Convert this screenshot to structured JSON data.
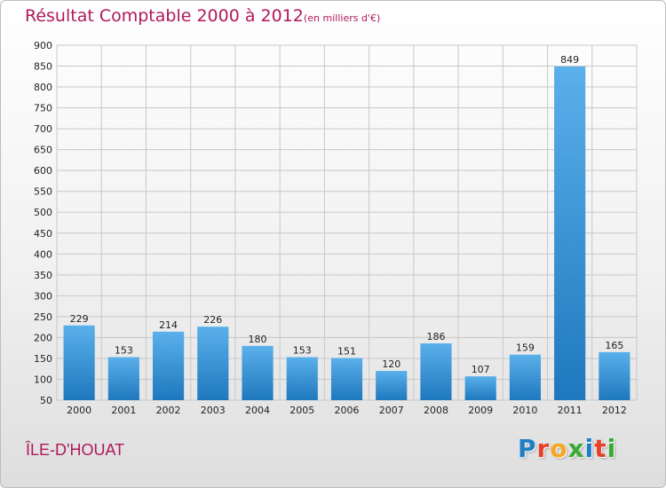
{
  "header": {
    "title": "Résultat Comptable 2000 à 2012",
    "subtitle": "(en milliers d'€)"
  },
  "commune": "ÎLE-D'HOUAT",
  "logo": {
    "letters": [
      "P",
      "r",
      "o",
      "x",
      "i",
      "t",
      "i"
    ],
    "colors": [
      "#1e7fc4",
      "#e6412a",
      "#f5a623",
      "#3aaa35",
      "#1e7fc4",
      "#e6412a",
      "#3aaa35"
    ]
  },
  "colors": {
    "bar_top": "#5ab0ea",
    "bar_bottom": "#1f78be",
    "grid": "#c8c8c8",
    "title": "#b0195a"
  },
  "chart_data": {
    "type": "bar",
    "title": "Résultat Comptable 2000 à 2012",
    "subtitle": "(en milliers d'€)",
    "categories": [
      "2000",
      "2001",
      "2002",
      "2003",
      "2004",
      "2005",
      "2006",
      "2007",
      "2008",
      "2009",
      "2010",
      "2011",
      "2012"
    ],
    "values": [
      229,
      153,
      214,
      226,
      180,
      153,
      151,
      120,
      186,
      107,
      159,
      849,
      165
    ],
    "ylim": [
      50,
      900
    ],
    "yticks": [
      50,
      100,
      150,
      200,
      250,
      300,
      350,
      400,
      450,
      500,
      550,
      600,
      650,
      700,
      750,
      800,
      850,
      900
    ],
    "grid": true,
    "data_labels": true
  }
}
